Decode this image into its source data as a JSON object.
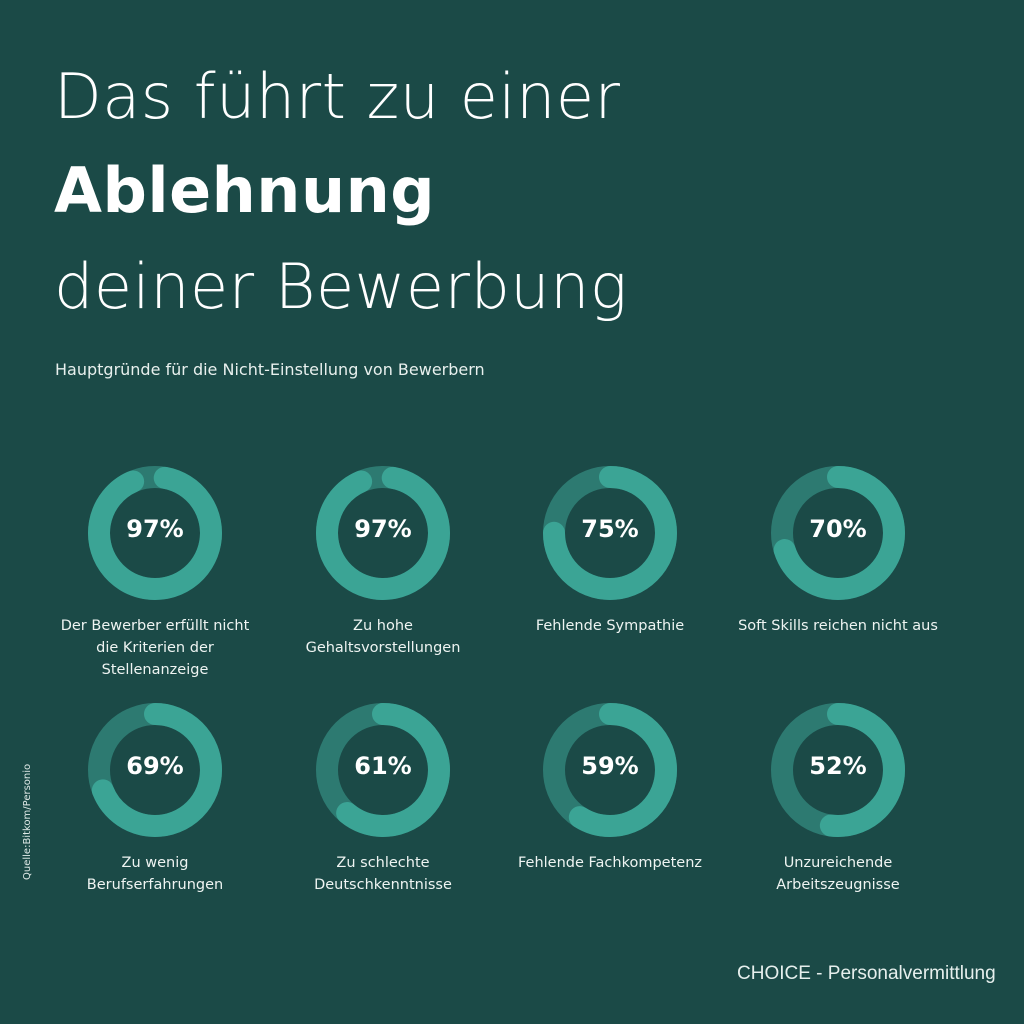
{
  "title": {
    "line1": "Das führt zu einer",
    "line2": "Ablehnung",
    "line3": "deiner Bewerbung"
  },
  "subtitle": "Hauptgründe für die Nicht-Einstellung von Bewerbern",
  "colors": {
    "background": "#1b4a47",
    "ring": "#3ba495",
    "track": "#2d7a71"
  },
  "chart_data": {
    "type": "pie",
    "title": "Hauptgründe für die Nicht-Einstellung von Bewerbern",
    "items": [
      {
        "value": 97,
        "pct_label": "97%",
        "label": "Der Bewerber erfüllt nicht die Kriterien der Stellenanzeige"
      },
      {
        "value": 97,
        "pct_label": "97%",
        "label": "Zu hohe Gehaltsvorstellungen"
      },
      {
        "value": 75,
        "pct_label": "75%",
        "label": "Fehlende Sympathie"
      },
      {
        "value": 70,
        "pct_label": "70%",
        "label": "Soft Skills reichen nicht aus"
      },
      {
        "value": 69,
        "pct_label": "69%",
        "label": "Zu wenig Berufserfahrungen"
      },
      {
        "value": 61,
        "pct_label": "61%",
        "label": "Zu schlechte Deutschkenntnisse"
      },
      {
        "value": 59,
        "pct_label": "59%",
        "label": "Fehlende Fachkompetenz"
      },
      {
        "value": 52,
        "pct_label": "52%",
        "label": "Unzureichende Arbeitszeugnisse"
      }
    ]
  },
  "source": "Quelle:Bitkom/Personio",
  "brand": "CHOICE - Personalvermittlung"
}
